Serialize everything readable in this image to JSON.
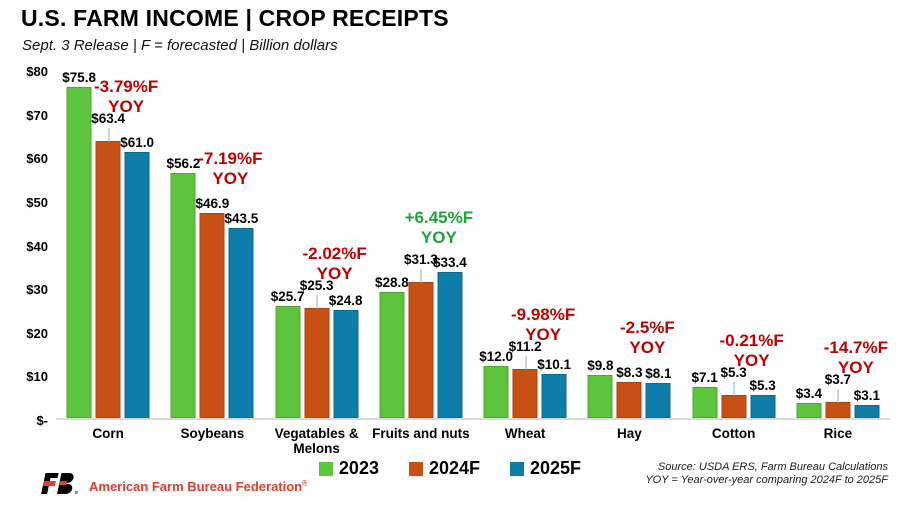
{
  "header": {
    "title": "U.S. FARM INCOME | CROP RECEIPTS",
    "subtitle": "Sept. 3 Release | F = forecasted | Billion dollars"
  },
  "chart_data": {
    "type": "bar",
    "title": "U.S. FARM INCOME | CROP RECEIPTS",
    "subtitle": "Sept. 3 Release | F = forecasted | Billion dollars",
    "xlabel": "",
    "ylabel": "Billion dollars",
    "ylim": [
      0,
      80
    ],
    "grid": false,
    "legend_position": "bottom",
    "y_ticks": [
      {
        "value": 0,
        "label": "$-"
      },
      {
        "value": 10,
        "label": "$10"
      },
      {
        "value": 20,
        "label": "$20"
      },
      {
        "value": 30,
        "label": "$30"
      },
      {
        "value": 40,
        "label": "$40"
      },
      {
        "value": 50,
        "label": "$50"
      },
      {
        "value": 60,
        "label": "$60"
      },
      {
        "value": 70,
        "label": "$70"
      },
      {
        "value": 80,
        "label": "$80"
      }
    ],
    "categories": [
      "Corn",
      "Soybeans",
      "Vegatables & Melons",
      "Fruits and nuts",
      "Wheat",
      "Hay",
      "Cotton",
      "Rice"
    ],
    "series": [
      {
        "name": "2023",
        "color": "#5dc43d",
        "values": [
          75.8,
          56.2,
          25.7,
          28.8,
          12.0,
          9.8,
          7.1,
          3.4
        ]
      },
      {
        "name": "2024F",
        "color": "#c75115",
        "values": [
          63.4,
          46.9,
          25.3,
          31.3,
          11.2,
          8.3,
          5.3,
          3.7
        ]
      },
      {
        "name": "2025F",
        "color": "#0e7da9",
        "values": [
          61.0,
          43.5,
          24.8,
          33.4,
          10.1,
          8.1,
          5.3,
          3.1
        ]
      }
    ],
    "data_label_format": "$#.#",
    "yoy_annotations": [
      "-3.79%F",
      "-7.19%F",
      "-2.02%F",
      "+6.45%F",
      "-9.98%F",
      "-2.5%F",
      "-0.21%F",
      "-14.7%F"
    ],
    "yoy_suffix": "YOY",
    "yoy_negative_color": "#c00000",
    "yoy_positive_color": "#1fa33c",
    "leader_lines_2024F": [
      true,
      false,
      true,
      true,
      true,
      false,
      true,
      true
    ]
  },
  "footer": {
    "org_name": "American Farm Bureau Federation",
    "org_reg": "®",
    "org_color": "#e8392e",
    "source_line1": "Source: USDA ERS, Farm Bureau Calculations",
    "source_line2": "YOY = Year-over-year comparing 2024F to 2025F"
  }
}
